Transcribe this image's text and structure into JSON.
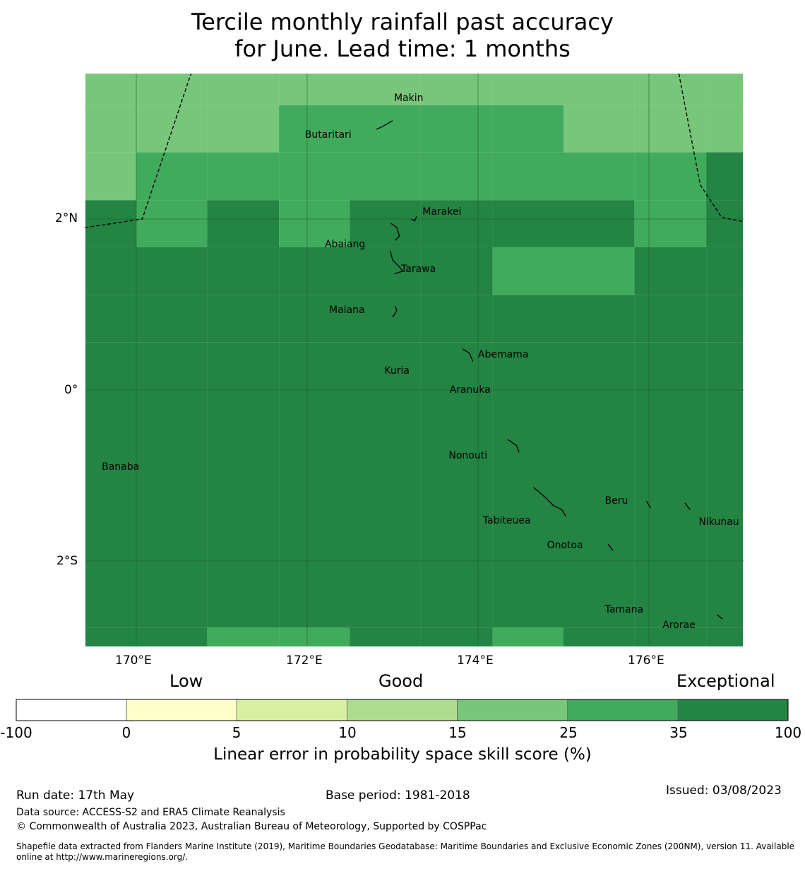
{
  "title_line1": "Tercile monthly rainfall past accuracy",
  "title_line2": "for June. Lead time: 1 months",
  "lon_ticks": [
    "170°E",
    "172°E",
    "174°E",
    "176°E"
  ],
  "lat_ticks": [
    "2°N",
    "0°",
    "2°S"
  ],
  "islands": [
    {
      "name": "Makin",
      "lon": 172.95,
      "lat": 3.35
    },
    {
      "name": "Butaritari",
      "lon": 172.8,
      "lat": 3.1
    },
    {
      "name": "Marakei",
      "lon": 173.25,
      "lat": 2.0
    },
    {
      "name": "Abaiang",
      "lon": 172.95,
      "lat": 1.8
    },
    {
      "name": "Tarawa",
      "lon": 173.0,
      "lat": 1.4
    },
    {
      "name": "Maiana",
      "lon": 173.0,
      "lat": 0.95
    },
    {
      "name": "Abemama",
      "lon": 173.9,
      "lat": 0.4
    },
    {
      "name": "Kuria",
      "lon": 173.4,
      "lat": 0.22
    },
    {
      "name": "Aranuka",
      "lon": 173.6,
      "lat": 0.15
    },
    {
      "name": "Nonouti",
      "lon": 174.4,
      "lat": -0.65
    },
    {
      "name": "Banaba",
      "lon": 169.53,
      "lat": -0.87
    },
    {
      "name": "Tabiteuea",
      "lon": 174.8,
      "lat": -1.3
    },
    {
      "name": "Beru",
      "lon": 175.98,
      "lat": -1.33
    },
    {
      "name": "Nikunau",
      "lon": 176.45,
      "lat": -1.36
    },
    {
      "name": "Onotoa",
      "lon": 175.55,
      "lat": -1.8
    },
    {
      "name": "Tamana",
      "lon": 175.98,
      "lat": -2.5
    },
    {
      "name": "Arorae",
      "lon": 176.82,
      "lat": -2.65
    }
  ],
  "colorbar": {
    "categories": [
      "Low",
      "Good",
      "Exceptional"
    ],
    "ticks": [
      "-100",
      "0",
      "5",
      "10",
      "15",
      "25",
      "35",
      "100"
    ],
    "colors": [
      "#ffffff",
      "#ffffcc",
      "#d9f0a3",
      "#addd8e",
      "#78c679",
      "#41ab5d",
      "#238443"
    ],
    "label": "Linear error in probability space skill score (%)"
  },
  "skill_grid": {
    "lon_edges": [
      169.4,
      170.0,
      170.83,
      171.67,
      172.5,
      173.33,
      174.17,
      175.0,
      175.83,
      176.67,
      177.1
    ],
    "lat_edges": [
      3.7,
      3.33,
      2.78,
      2.22,
      1.67,
      1.11,
      0.56,
      -2.78,
      -3.0
    ],
    "categories_by_row": [
      [
        4,
        4,
        4,
        4,
        4,
        4,
        4,
        4,
        4,
        4
      ],
      [
        4,
        4,
        4,
        5,
        5,
        5,
        5,
        4,
        4,
        4
      ],
      [
        4,
        5,
        5,
        5,
        5,
        5,
        5,
        5,
        5,
        6
      ],
      [
        6,
        5,
        6,
        5,
        6,
        6,
        6,
        6,
        5,
        6
      ],
      [
        6,
        6,
        6,
        6,
        6,
        6,
        5,
        5,
        6,
        6
      ],
      [
        6,
        6,
        6,
        6,
        6,
        6,
        6,
        6,
        6,
        6
      ],
      [
        6,
        6,
        6,
        6,
        6,
        6,
        6,
        6,
        6,
        6
      ],
      [
        6,
        6,
        5,
        5,
        6,
        6,
        5,
        6,
        6,
        6
      ]
    ]
  },
  "footer": {
    "run_date": "Run date: 17th May",
    "base_period": "Base period: 1981-2018",
    "issued": "Issued: 03/08/2023",
    "data_source": "Data source: ACCESS-S2 and ERA5 Climate Reanalysis",
    "copyright": "© Commonwealth of Australia 2023, Australian Bureau of Meteorology, Supported by COSPPac",
    "shapefile": "Shapefile data extracted from Flanders Marine Institute (2019), Maritime Boundaries Geodatabase: Maritime Boundaries and Exclusive Economic Zones (200NM), version 11. Available online at http://www.marineregions.org/."
  }
}
